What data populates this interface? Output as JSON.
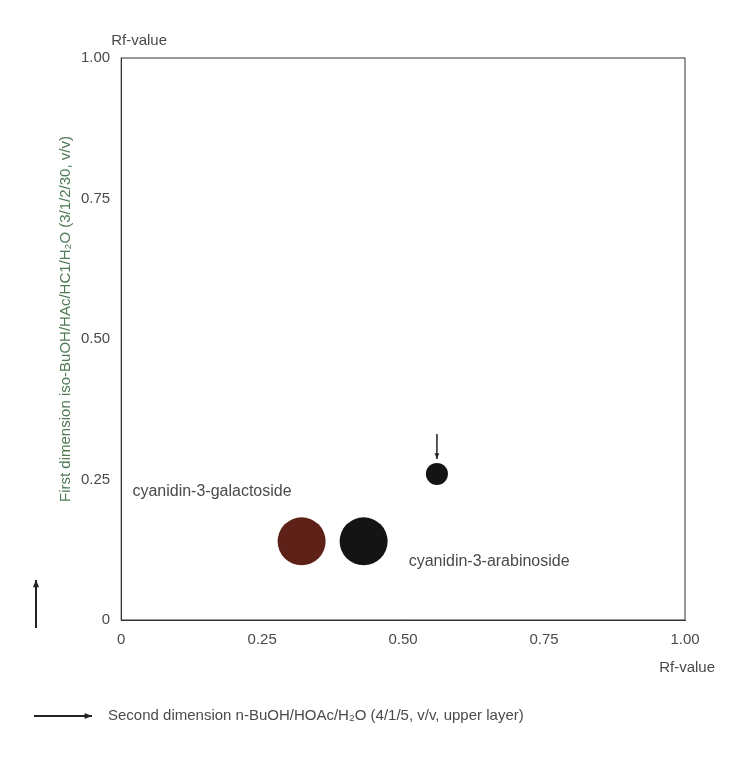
{
  "chart_data": {
    "type": "scatter",
    "xlabel": "Second dimension n-BuOH/HOAc/H₂O (4/1/5, v/v, upper layer)",
    "ylabel": "First dimension iso-BuOH/HAc/HC1/H₂O (3/1/2/30, v/v)",
    "x_value_label": "Rf-value",
    "y_value_label": "Rf-value",
    "xlim": [
      0,
      1
    ],
    "ylim": [
      0,
      1
    ],
    "xticks": [
      0,
      0.25,
      {
        "value": 0.5,
        "label": "0.50"
      },
      0.75,
      {
        "value": 1,
        "label": "1.00"
      }
    ],
    "yticks": [
      0,
      0.25,
      {
        "value": 0.5,
        "label": "0.50"
      },
      0.75,
      {
        "value": 1,
        "label": "1.00"
      }
    ],
    "grid": false,
    "series": [
      {
        "name": "cyanidin-3-galactoside",
        "color": "#5e2118",
        "marker": "circle",
        "x": [
          0.32
        ],
        "values": [
          0.14
        ]
      },
      {
        "name": "cyanidin-3-arabinoside",
        "color": "#141414",
        "marker": "circle",
        "x": [
          0.43
        ],
        "values": [
          0.14
        ]
      },
      {
        "color": "#141414",
        "marker": "circle",
        "x": [
          0.56
        ],
        "values": [
          0.26
        ]
      }
    ]
  }
}
